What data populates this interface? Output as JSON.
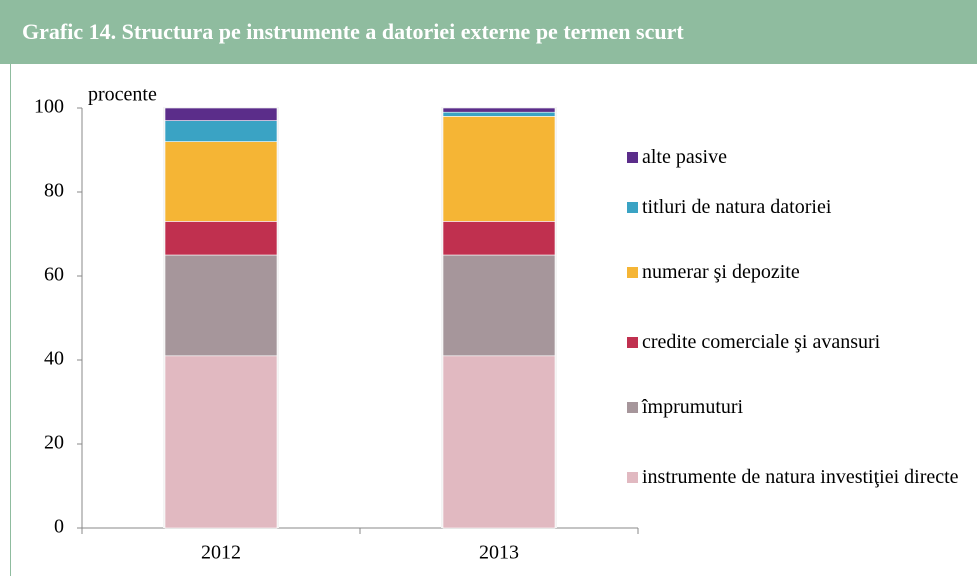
{
  "chart_data": {
    "type": "stacked_bar",
    "title": "Grafic 14. Structura pe instrumente a datoriei externe pe termen scurt",
    "y_label": "procente",
    "categories": [
      "2012",
      "2013"
    ],
    "series": [
      {
        "name": "instrumente de natura investiţiei directe",
        "color": "#e1b9c1",
        "values": [
          41,
          41
        ]
      },
      {
        "name": "împrumuturi",
        "color": "#a6969b",
        "values": [
          24,
          24
        ]
      },
      {
        "name": "credite comerciale şi avansuri",
        "color": "#c0304f",
        "values": [
          8,
          8
        ]
      },
      {
        "name": "numerar şi depozite",
        "color": "#f5b535",
        "values": [
          19,
          25
        ]
      },
      {
        "name": "titluri de natura datoriei",
        "color": "#3aa3c4",
        "values": [
          5,
          1
        ]
      },
      {
        "name": "alte pasive",
        "color": "#5b2d8a",
        "values": [
          3,
          1
        ]
      }
    ],
    "ylim": [
      0,
      100
    ],
    "yticks": [
      0,
      20,
      40,
      60,
      80,
      100
    ],
    "legend": "right"
  }
}
